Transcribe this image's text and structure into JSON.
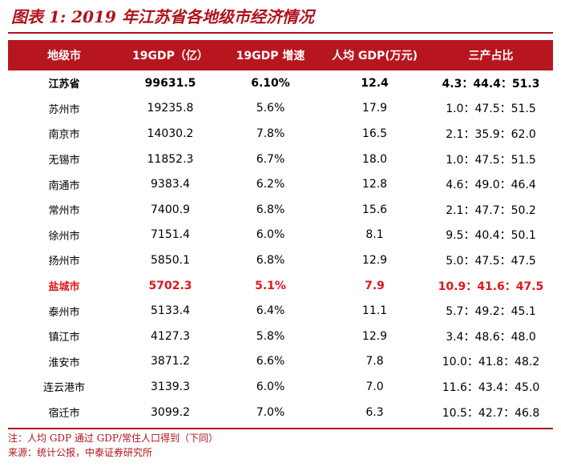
{
  "title": "图表 1:  2019 年江苏省各地级市经济情况",
  "table": {
    "headers": [
      "地级市",
      "19GDP（亿）",
      "19GDP 增速",
      "人均 GDP(万元)",
      "三产占比"
    ],
    "rows": [
      {
        "name": "江苏省",
        "gdp": "99631.5",
        "growth": "6.10%",
        "per_capita": "12.4",
        "ratio": "4.3：44.4：51.3",
        "style": "bold"
      },
      {
        "name": "苏州市",
        "gdp": "19235.8",
        "growth": "5.6%",
        "per_capita": "17.9",
        "ratio": "1.0：47.5：51.5",
        "style": ""
      },
      {
        "name": "南京市",
        "gdp": "14030.2",
        "growth": "7.8%",
        "per_capita": "16.5",
        "ratio": "2.1：35.9：62.0",
        "style": ""
      },
      {
        "name": "无锡市",
        "gdp": "11852.3",
        "growth": "6.7%",
        "per_capita": "18.0",
        "ratio": "1.0：47.5：51.5",
        "style": ""
      },
      {
        "name": "南通市",
        "gdp": "9383.4",
        "growth": "6.2%",
        "per_capita": "12.8",
        "ratio": "4.6：49.0：46.4",
        "style": ""
      },
      {
        "name": "常州市",
        "gdp": "7400.9",
        "growth": "6.8%",
        "per_capita": "15.6",
        "ratio": "2.1：47.7：50.2",
        "style": ""
      },
      {
        "name": "徐州市",
        "gdp": "7151.4",
        "growth": "6.0%",
        "per_capita": "8.1",
        "ratio": "9.5：40.4：50.1",
        "style": ""
      },
      {
        "name": "扬州市",
        "gdp": "5850.1",
        "growth": "6.8%",
        "per_capita": "12.9",
        "ratio": "5.0：47.5：47.5",
        "style": ""
      },
      {
        "name": "盐城市",
        "gdp": "5702.3",
        "growth": "5.1%",
        "per_capita": "7.9",
        "ratio": "10.9：41.6：47.5",
        "style": "red"
      },
      {
        "name": "泰州市",
        "gdp": "5133.4",
        "growth": "6.4%",
        "per_capita": "11.1",
        "ratio": "5.7：49.2：45.1",
        "style": ""
      },
      {
        "name": "镇江市",
        "gdp": "4127.3",
        "growth": "5.8%",
        "per_capita": "12.9",
        "ratio": "3.4：48.6：48.0",
        "style": ""
      },
      {
        "name": "淮安市",
        "gdp": "3871.2",
        "growth": "6.6%",
        "per_capita": "7.8",
        "ratio": "10.0：41.8：48.2",
        "style": ""
      },
      {
        "name": "连云港市",
        "gdp": "3139.3",
        "growth": "6.0%",
        "per_capita": "7.0",
        "ratio": "11.6：43.4：45.0",
        "style": ""
      },
      {
        "name": "宿迁市",
        "gdp": "3099.2",
        "growth": "7.0%",
        "per_capita": "6.3",
        "ratio": "10.5：42.7：46.8",
        "style": ""
      }
    ]
  },
  "notes": {
    "note": "注：人均 GDP 通过 GDP/常住人口得到（下同）",
    "source": "来源：统计公报，中泰证券研究所"
  },
  "colors": {
    "accent": "#b0121b",
    "header_bg": "#b8161e",
    "highlight": "#e0161d"
  }
}
